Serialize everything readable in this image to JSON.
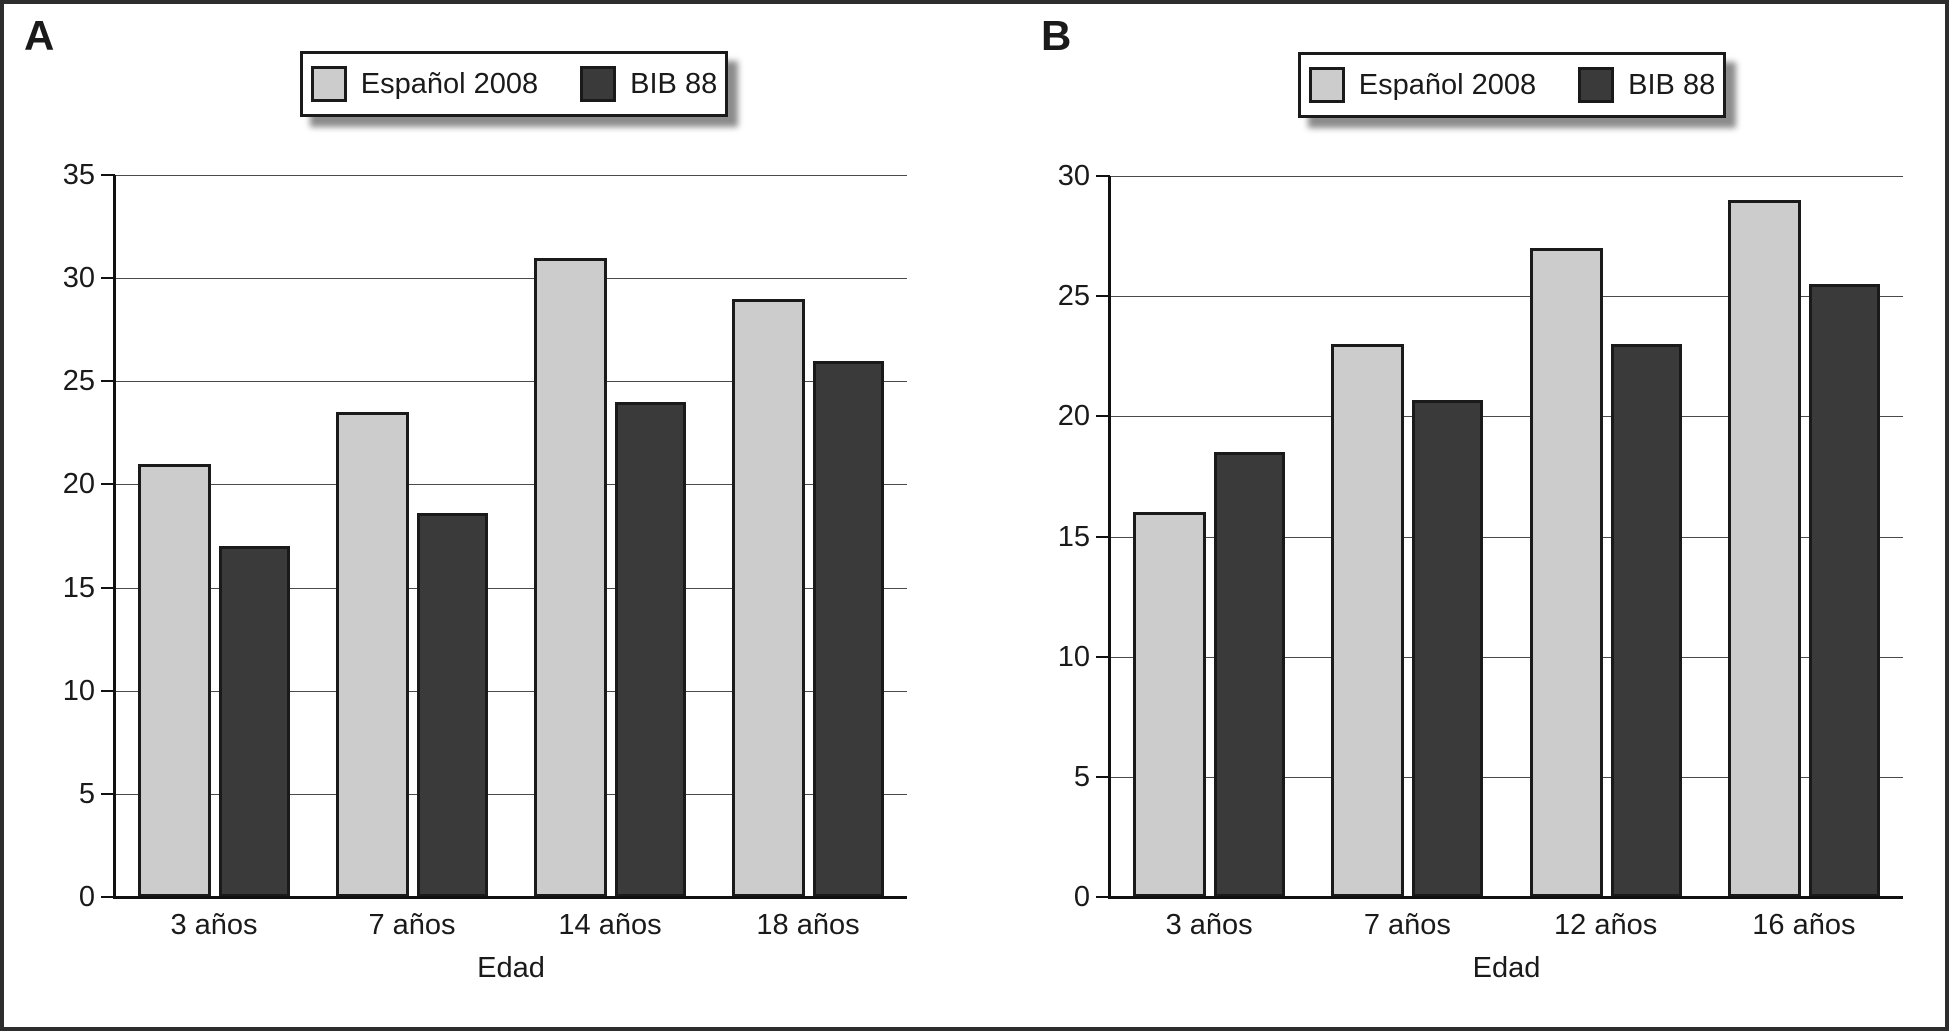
{
  "panels": [
    {
      "label": "A"
    },
    {
      "label": "B"
    }
  ],
  "chart_data": [
    {
      "panel": "A",
      "type": "bar",
      "categories": [
        "3 años",
        "7 años",
        "14 años",
        "18 años"
      ],
      "series": [
        {
          "name": "Español 2008",
          "values": [
            21,
            23.5,
            31,
            29
          ],
          "color": "#cccccc"
        },
        {
          "name": "BIB 88",
          "values": [
            17,
            18.6,
            24,
            26
          ],
          "color": "#3a3a3a"
        }
      ],
      "xlabel": "Edad",
      "ylabel": "",
      "ylim": [
        0,
        35
      ],
      "ytick_step": 5,
      "grid": true,
      "legend_position": "top-center"
    },
    {
      "panel": "B",
      "type": "bar",
      "categories": [
        "3 años",
        "7 años",
        "12 años",
        "16 años"
      ],
      "series": [
        {
          "name": "Español 2008",
          "values": [
            16,
            23,
            27,
            29
          ],
          "color": "#cccccc"
        },
        {
          "name": "BIB 88",
          "values": [
            18.5,
            20.7,
            23,
            25.5
          ],
          "color": "#3a3a3a"
        }
      ],
      "xlabel": "Edad",
      "ylabel": "",
      "ylim": [
        0,
        30
      ],
      "ytick_step": 5,
      "grid": true,
      "legend_position": "top-center"
    }
  ],
  "colors": {
    "bar_light": "#cccccc",
    "bar_dark": "#3a3a3a",
    "bar_border": "#1a1a1a",
    "gridline": "#4a4a4a",
    "axis": "#111111",
    "text": "#1a1a1a",
    "legend_shadow": "#8c8c8c",
    "figure_border": "#2d2d2d",
    "background": "#ffffff"
  }
}
